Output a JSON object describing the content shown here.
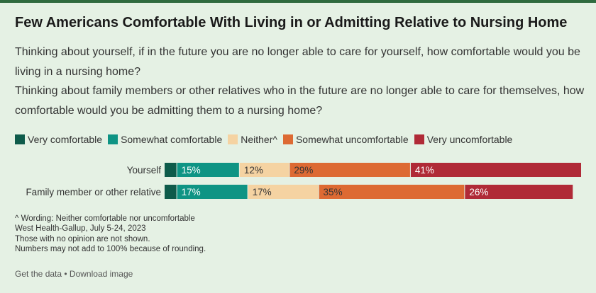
{
  "title": "Few Americans Comfortable With Living in or Admitting Relative to Nursing Home",
  "subtitle": [
    "Thinking about yourself, if in the future you are no longer able to care for yourself, how comfortable would you be living in a nursing home?",
    "Thinking about family members or other relatives who in the future are no longer able to care for themselves, how comfortable would you be admitting them to a nursing home?"
  ],
  "notes": [
    "^ Wording: Neither comfortable nor uncomfortable",
    "West Health-Gallup, July 5-24, 2023",
    "Those with no opinion are not shown.",
    "Numbers may not add to 100% because of rounding."
  ],
  "footer": {
    "get_data": "Get the data",
    "separator": " • ",
    "download": "Download image"
  },
  "chart_data": {
    "type": "bar",
    "stacked": true,
    "orientation": "horizontal",
    "categories": [
      "Yourself",
      "Family member or other relative"
    ],
    "series": [
      {
        "name": "Very comfortable",
        "color": "#0e5b4a",
        "values": [
          3,
          3
        ],
        "labels": [
          "",
          ""
        ]
      },
      {
        "name": "Somewhat comfortable",
        "color": "#0e9484",
        "values": [
          15,
          17
        ],
        "labels": [
          "15%",
          "17%"
        ]
      },
      {
        "name": "Neither^",
        "color": "#f5d3a2",
        "values": [
          12,
          17
        ],
        "labels": [
          "12%",
          "17%"
        ]
      },
      {
        "name": "Somewhat uncomfortable",
        "color": "#dd6a33",
        "values": [
          29,
          35
        ],
        "labels": [
          "29%",
          "35%"
        ]
      },
      {
        "name": "Very uncomfortable",
        "color": "#b02a37",
        "values": [
          41,
          26
        ],
        "labels": [
          "41%",
          "26%"
        ]
      }
    ],
    "label_colors": [
      "#ffffff",
      "#ffffff",
      "#333333",
      "#333333",
      "#ffffff"
    ],
    "xlim": [
      0,
      100
    ],
    "legend": "top"
  }
}
